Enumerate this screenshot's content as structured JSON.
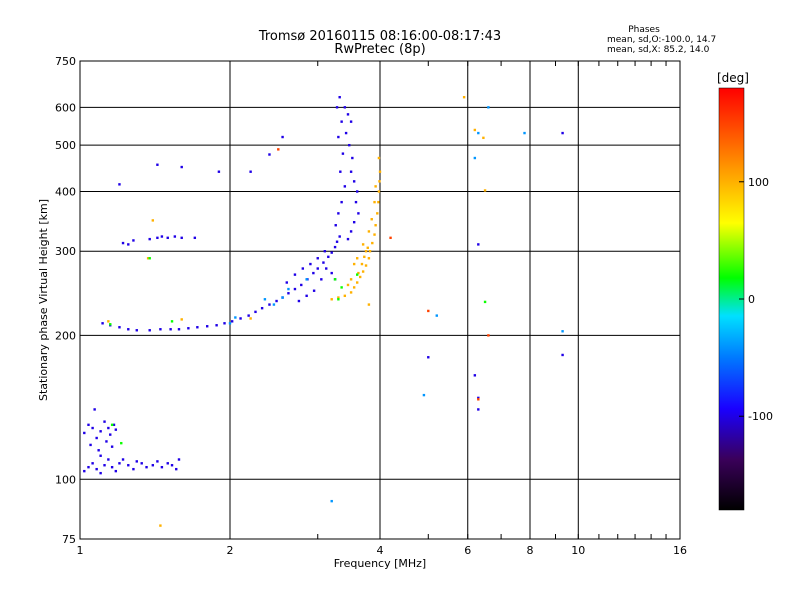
{
  "chart_data": {
    "type": "scatter",
    "title": "Tromsø 20160115 08:16:00-08:17:43",
    "subtitle": "RwPretec (8p)",
    "xlabel": "Frequency [MHz]",
    "ylabel": "Stationary phase Virtual Height [km]",
    "x_scale": "log",
    "y_scale": "log",
    "xlim": [
      1,
      16
    ],
    "ylim": [
      75,
      750
    ],
    "xticks": [
      1,
      2,
      4,
      6,
      8,
      10,
      16
    ],
    "xtick_labels": [
      "1",
      "2",
      "4",
      "6",
      "8",
      "10",
      "16"
    ],
    "yticks": [
      75,
      100,
      200,
      300,
      400,
      500,
      600,
      750
    ],
    "ytick_labels": [
      "75",
      "100",
      "200",
      "300",
      "400",
      "500",
      "600",
      "750"
    ],
    "grid": true,
    "phases_box": {
      "title": "Phases",
      "line1": "mean, sd,O:-100.0, 14.7",
      "line2": "mean, sd,X:  85.2, 14.0"
    },
    "colorbar": {
      "label": "[deg]",
      "range": [
        -180,
        180
      ],
      "ticks": [
        100,
        0,
        -100
      ],
      "tick_labels": [
        "100",
        "0",
        "-100"
      ]
    },
    "series": [
      {
        "phase": -100,
        "points": [
          [
            1.02,
            104
          ],
          [
            1.04,
            106
          ],
          [
            1.06,
            108
          ],
          [
            1.08,
            105
          ],
          [
            1.1,
            103
          ],
          [
            1.12,
            107
          ],
          [
            1.14,
            110
          ],
          [
            1.16,
            106
          ],
          [
            1.18,
            104
          ],
          [
            1.2,
            108
          ],
          [
            1.22,
            110
          ],
          [
            1.25,
            107
          ],
          [
            1.28,
            105
          ],
          [
            1.3,
            109
          ],
          [
            1.33,
            108
          ],
          [
            1.36,
            106
          ],
          [
            1.4,
            107
          ],
          [
            1.43,
            109
          ],
          [
            1.46,
            106
          ],
          [
            1.5,
            108
          ],
          [
            1.53,
            107
          ],
          [
            1.56,
            105
          ],
          [
            1.58,
            110
          ],
          [
            1.02,
            125
          ],
          [
            1.04,
            130
          ],
          [
            1.06,
            128
          ],
          [
            1.08,
            122
          ],
          [
            1.1,
            126
          ],
          [
            1.12,
            132
          ],
          [
            1.14,
            128
          ],
          [
            1.15,
            124
          ],
          [
            1.17,
            130
          ],
          [
            1.18,
            127
          ],
          [
            1.05,
            118
          ],
          [
            1.09,
            115
          ],
          [
            1.13,
            120
          ],
          [
            1.16,
            117
          ],
          [
            1.1,
            112
          ],
          [
            1.07,
            140
          ],
          [
            1.22,
            312
          ],
          [
            1.25,
            310
          ],
          [
            1.28,
            316
          ],
          [
            1.43,
            320
          ],
          [
            1.46,
            322
          ],
          [
            1.5,
            320
          ],
          [
            1.55,
            322
          ],
          [
            1.6,
            320
          ],
          [
            1.38,
            318
          ],
          [
            1.2,
            414
          ],
          [
            1.43,
            455
          ],
          [
            1.11,
            212
          ],
          [
            1.15,
            210
          ],
          [
            1.2,
            208
          ],
          [
            1.25,
            206
          ],
          [
            1.3,
            205
          ],
          [
            1.38,
            205
          ],
          [
            1.45,
            206
          ],
          [
            1.52,
            206
          ],
          [
            1.58,
            206
          ],
          [
            1.65,
            207
          ],
          [
            1.72,
            208
          ],
          [
            1.8,
            209
          ],
          [
            1.88,
            210
          ],
          [
            1.95,
            212
          ],
          [
            2.02,
            214
          ],
          [
            2.1,
            217
          ],
          [
            2.18,
            220
          ],
          [
            2.25,
            224
          ],
          [
            2.32,
            228
          ],
          [
            2.4,
            232
          ],
          [
            2.48,
            236
          ],
          [
            2.55,
            240
          ],
          [
            2.62,
            245
          ],
          [
            2.7,
            250
          ],
          [
            2.78,
            255
          ],
          [
            2.86,
            262
          ],
          [
            2.94,
            270
          ],
          [
            3.0,
            276
          ],
          [
            3.08,
            284
          ],
          [
            3.15,
            292
          ],
          [
            3.2,
            298
          ],
          [
            3.25,
            306
          ],
          [
            3.28,
            314
          ],
          [
            3.32,
            322
          ],
          [
            3.28,
            600
          ],
          [
            3.32,
            630
          ],
          [
            3.35,
            560
          ],
          [
            3.3,
            520
          ],
          [
            3.37,
            480
          ],
          [
            3.33,
            440
          ],
          [
            3.4,
            410
          ],
          [
            3.35,
            380
          ],
          [
            3.3,
            360
          ],
          [
            3.26,
            340
          ],
          [
            3.4,
            600
          ],
          [
            3.45,
            580
          ],
          [
            3.5,
            560
          ],
          [
            3.42,
            530
          ],
          [
            3.47,
            500
          ],
          [
            3.52,
            470
          ],
          [
            3.5,
            440
          ],
          [
            3.55,
            420
          ],
          [
            3.6,
            400
          ],
          [
            3.58,
            380
          ],
          [
            3.62,
            360
          ],
          [
            3.55,
            345
          ],
          [
            3.5,
            330
          ],
          [
            3.45,
            318
          ],
          [
            2.6,
            258
          ],
          [
            2.7,
            268
          ],
          [
            2.8,
            276
          ],
          [
            2.9,
            282
          ],
          [
            3.0,
            290
          ],
          [
            3.1,
            300
          ],
          [
            3.05,
            262
          ],
          [
            3.12,
            276
          ],
          [
            2.95,
            248
          ],
          [
            2.85,
            242
          ],
          [
            2.75,
            236
          ],
          [
            3.2,
            270
          ],
          [
            3.25,
            262
          ],
          [
            2.4,
            478
          ],
          [
            2.55,
            520
          ],
          [
            2.2,
            440
          ],
          [
            1.9,
            440
          ],
          [
            1.6,
            450
          ],
          [
            6.3,
            310
          ],
          [
            6.2,
            165
          ],
          [
            6.3,
            148
          ],
          [
            6.3,
            140
          ],
          [
            9.3,
            530
          ],
          [
            9.3,
            182
          ],
          [
            5.0,
            180
          ],
          [
            1.7,
            320
          ]
        ]
      },
      {
        "phase": 100,
        "points": [
          [
            3.2,
            238
          ],
          [
            3.3,
            240
          ],
          [
            3.4,
            242
          ],
          [
            3.5,
            246
          ],
          [
            3.55,
            252
          ],
          [
            3.6,
            258
          ],
          [
            3.65,
            265
          ],
          [
            3.7,
            272
          ],
          [
            3.75,
            280
          ],
          [
            3.8,
            290
          ],
          [
            3.82,
            300
          ],
          [
            3.86,
            312
          ],
          [
            3.9,
            325
          ],
          [
            3.92,
            340
          ],
          [
            3.95,
            360
          ],
          [
            3.97,
            380
          ],
          [
            3.98,
            400
          ],
          [
            3.99,
            420
          ],
          [
            4.0,
            440
          ],
          [
            3.98,
            470
          ],
          [
            3.75,
            300
          ],
          [
            3.7,
            310
          ],
          [
            3.8,
            330
          ],
          [
            3.85,
            350
          ],
          [
            3.6,
            290
          ],
          [
            3.55,
            282
          ],
          [
            3.9,
            380
          ],
          [
            3.92,
            410
          ],
          [
            3.62,
            270
          ],
          [
            3.68,
            282
          ],
          [
            3.72,
            292
          ],
          [
            3.78,
            305
          ],
          [
            3.5,
            262
          ],
          [
            3.45,
            255
          ],
          [
            1.14,
            214
          ],
          [
            1.6,
            216
          ],
          [
            3.8,
            232
          ],
          [
            2.2,
            217
          ],
          [
            6.5,
            402
          ],
          [
            6.2,
            538
          ],
          [
            1.4,
            348
          ],
          [
            1.45,
            80
          ],
          [
            1.37,
            290
          ],
          [
            6.45,
            518
          ],
          [
            5.9,
            630
          ]
        ]
      },
      {
        "phase": 20,
        "points": [
          [
            1.15,
            211
          ],
          [
            1.38,
            290
          ],
          [
            1.16,
            130
          ],
          [
            1.21,
            119
          ],
          [
            3.3,
            238
          ],
          [
            3.35,
            252
          ],
          [
            3.25,
            262
          ],
          [
            1.53,
            214
          ],
          [
            3.6,
            268
          ],
          [
            6.5,
            235
          ]
        ]
      },
      {
        "phase": -40,
        "points": [
          [
            2.0,
            212
          ],
          [
            2.05,
            218
          ],
          [
            2.45,
            232
          ],
          [
            2.55,
            240
          ],
          [
            2.35,
            238
          ],
          [
            2.62,
            250
          ],
          [
            2.85,
            262
          ],
          [
            3.2,
            90
          ],
          [
            5.2,
            220
          ],
          [
            6.6,
            600
          ],
          [
            7.8,
            530
          ],
          [
            9.3,
            204
          ],
          [
            6.3,
            530
          ],
          [
            6.2,
            470
          ],
          [
            4.9,
            150
          ]
        ]
      },
      {
        "phase": 150,
        "points": [
          [
            4.2,
            320
          ],
          [
            6.3,
            147
          ],
          [
            5.0,
            225
          ],
          [
            6.6,
            200
          ],
          [
            2.5,
            490
          ]
        ]
      }
    ]
  }
}
